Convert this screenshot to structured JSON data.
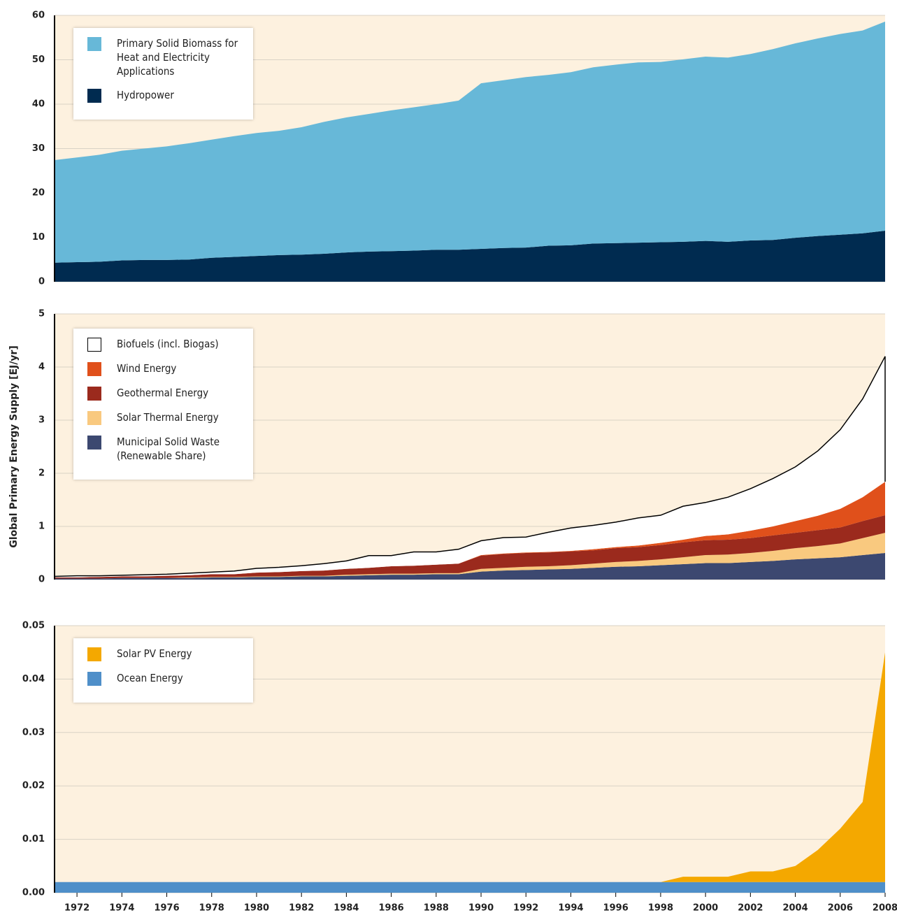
{
  "chart_data": [
    {
      "type": "stacked-area",
      "x": [
        1971,
        1972,
        1973,
        1974,
        1975,
        1976,
        1977,
        1978,
        1979,
        1980,
        1981,
        1982,
        1983,
        1984,
        1985,
        1986,
        1987,
        1988,
        1989,
        1990,
        1991,
        1992,
        1993,
        1994,
        1995,
        1996,
        1997,
        1998,
        1999,
        2000,
        2001,
        2002,
        2003,
        2004,
        2005,
        2006,
        2007,
        2008
      ],
      "xlim": [
        1971,
        2008
      ],
      "ylim": [
        0,
        60
      ],
      "yticks": [
        0,
        10,
        20,
        30,
        40,
        50,
        60
      ],
      "grid": true,
      "series": [
        {
          "name": "Hydropower",
          "color": "#002b50",
          "values": [
            4.3,
            4.4,
            4.5,
            4.8,
            4.9,
            4.9,
            5.0,
            5.4,
            5.6,
            5.8,
            6.0,
            6.1,
            6.3,
            6.6,
            6.8,
            6.9,
            7.0,
            7.2,
            7.2,
            7.4,
            7.6,
            7.7,
            8.1,
            8.2,
            8.6,
            8.7,
            8.8,
            8.9,
            9.0,
            9.2,
            9.0,
            9.3,
            9.4,
            9.9,
            10.3,
            10.6,
            10.9,
            11.5
          ]
        },
        {
          "name": "Primary Solid Biomass for Heat and Electricity Applications",
          "color": "#67b8d8",
          "values": [
            23.1,
            23.6,
            24.1,
            24.7,
            25.1,
            25.6,
            26.2,
            26.6,
            27.2,
            27.7,
            28.0,
            28.7,
            29.7,
            30.4,
            31.0,
            31.7,
            32.3,
            32.8,
            33.6,
            37.3,
            37.8,
            38.4,
            38.5,
            39.0,
            39.7,
            40.2,
            40.6,
            40.6,
            41.1,
            41.5,
            41.5,
            42.0,
            43.0,
            43.8,
            44.5,
            45.2,
            45.7,
            47.1
          ]
        }
      ]
    },
    {
      "type": "stacked-area",
      "ylabel": "Global Primary Energy Supply [EJ/yr]",
      "x": [
        1971,
        1972,
        1973,
        1974,
        1975,
        1976,
        1977,
        1978,
        1979,
        1980,
        1981,
        1982,
        1983,
        1984,
        1985,
        1986,
        1987,
        1988,
        1989,
        1990,
        1991,
        1992,
        1993,
        1994,
        1995,
        1996,
        1997,
        1998,
        1999,
        2000,
        2001,
        2002,
        2003,
        2004,
        2005,
        2006,
        2007,
        2008
      ],
      "xlim": [
        1971,
        2008
      ],
      "ylim": [
        0,
        5
      ],
      "yticks": [
        0,
        1,
        2,
        3,
        4,
        5
      ],
      "grid": true,
      "series": [
        {
          "name": "Municipal Solid Waste (Renewable Share)",
          "color": "#3c4870",
          "values": [
            0.02,
            0.02,
            0.02,
            0.03,
            0.03,
            0.03,
            0.03,
            0.04,
            0.04,
            0.05,
            0.05,
            0.06,
            0.06,
            0.07,
            0.08,
            0.09,
            0.09,
            0.1,
            0.1,
            0.15,
            0.17,
            0.18,
            0.19,
            0.2,
            0.22,
            0.24,
            0.25,
            0.27,
            0.29,
            0.31,
            0.31,
            0.33,
            0.35,
            0.38,
            0.4,
            0.42,
            0.46,
            0.5
          ]
        },
        {
          "name": "Solar Thermal Energy",
          "color": "#f9c97f",
          "values": [
            0,
            0,
            0,
            0,
            0,
            0,
            0.01,
            0.01,
            0.01,
            0.01,
            0.01,
            0.01,
            0.01,
            0.02,
            0.02,
            0.02,
            0.02,
            0.02,
            0.02,
            0.05,
            0.05,
            0.06,
            0.06,
            0.07,
            0.08,
            0.09,
            0.1,
            0.11,
            0.13,
            0.15,
            0.16,
            0.17,
            0.19,
            0.21,
            0.23,
            0.26,
            0.32,
            0.38
          ]
        },
        {
          "name": "Geothermal Energy",
          "color": "#9b2a1d",
          "values": [
            0.02,
            0.02,
            0.03,
            0.03,
            0.03,
            0.04,
            0.04,
            0.05,
            0.05,
            0.07,
            0.08,
            0.09,
            0.1,
            0.11,
            0.12,
            0.14,
            0.15,
            0.16,
            0.18,
            0.25,
            0.26,
            0.26,
            0.26,
            0.26,
            0.25,
            0.26,
            0.26,
            0.27,
            0.28,
            0.28,
            0.28,
            0.28,
            0.29,
            0.29,
            0.3,
            0.3,
            0.32,
            0.33
          ]
        },
        {
          "name": "Wind Energy",
          "color": "#e0501b",
          "values": [
            0,
            0,
            0,
            0,
            0,
            0,
            0,
            0,
            0,
            0,
            0,
            0,
            0,
            0,
            0,
            0,
            0,
            0,
            0,
            0.01,
            0.01,
            0.01,
            0.01,
            0.01,
            0.02,
            0.02,
            0.03,
            0.04,
            0.05,
            0.08,
            0.1,
            0.14,
            0.17,
            0.22,
            0.27,
            0.35,
            0.45,
            0.63
          ]
        },
        {
          "name": "Biofuels (incl. Biogas)",
          "color": "#ffffff",
          "outline": "#000000",
          "values": [
            0.02,
            0.03,
            0.02,
            0.02,
            0.03,
            0.03,
            0.04,
            0.04,
            0.06,
            0.08,
            0.09,
            0.1,
            0.13,
            0.15,
            0.23,
            0.2,
            0.26,
            0.24,
            0.27,
            0.27,
            0.3,
            0.29,
            0.37,
            0.43,
            0.45,
            0.47,
            0.52,
            0.52,
            0.63,
            0.63,
            0.7,
            0.79,
            0.9,
            1.02,
            1.22,
            1.49,
            1.85,
            2.36
          ]
        }
      ]
    },
    {
      "type": "stacked-area",
      "x": [
        1971,
        1972,
        1973,
        1974,
        1975,
        1976,
        1977,
        1978,
        1979,
        1980,
        1981,
        1982,
        1983,
        1984,
        1985,
        1986,
        1987,
        1988,
        1989,
        1990,
        1991,
        1992,
        1993,
        1994,
        1995,
        1996,
        1997,
        1998,
        1999,
        2000,
        2001,
        2002,
        2003,
        2004,
        2005,
        2006,
        2007,
        2008
      ],
      "xlim": [
        1971,
        2008
      ],
      "xticks": [
        1972,
        1974,
        1976,
        1978,
        1980,
        1982,
        1984,
        1986,
        1988,
        1990,
        1992,
        1994,
        1996,
        1998,
        2000,
        2002,
        2004,
        2006,
        2008
      ],
      "ylim": [
        0,
        0.05
      ],
      "yticks": [
        {
          "value": 0,
          "label": "0.00"
        },
        0.01,
        0.02,
        0.03,
        0.04,
        0.05
      ],
      "grid": true,
      "series": [
        {
          "name": "Ocean Energy",
          "color": "#4f8fc9",
          "values": [
            0.002,
            0.002,
            0.002,
            0.002,
            0.002,
            0.002,
            0.002,
            0.002,
            0.002,
            0.002,
            0.002,
            0.002,
            0.002,
            0.002,
            0.002,
            0.002,
            0.002,
            0.002,
            0.002,
            0.002,
            0.002,
            0.002,
            0.002,
            0.002,
            0.002,
            0.002,
            0.002,
            0.002,
            0.002,
            0.002,
            0.002,
            0.002,
            0.002,
            0.002,
            0.002,
            0.002,
            0.002,
            0.002
          ]
        },
        {
          "name": "Solar PV Energy",
          "color": "#f4a800",
          "values": [
            0,
            0,
            0,
            0,
            0,
            0,
            0,
            0,
            0,
            0,
            0,
            0,
            0,
            0,
            0,
            0,
            0,
            0,
            0,
            0,
            0,
            0,
            0,
            0,
            0,
            0,
            0,
            0,
            0.001,
            0.001,
            0.001,
            0.002,
            0.002,
            0.003,
            0.006,
            0.01,
            0.015,
            0.043
          ]
        }
      ]
    }
  ]
}
